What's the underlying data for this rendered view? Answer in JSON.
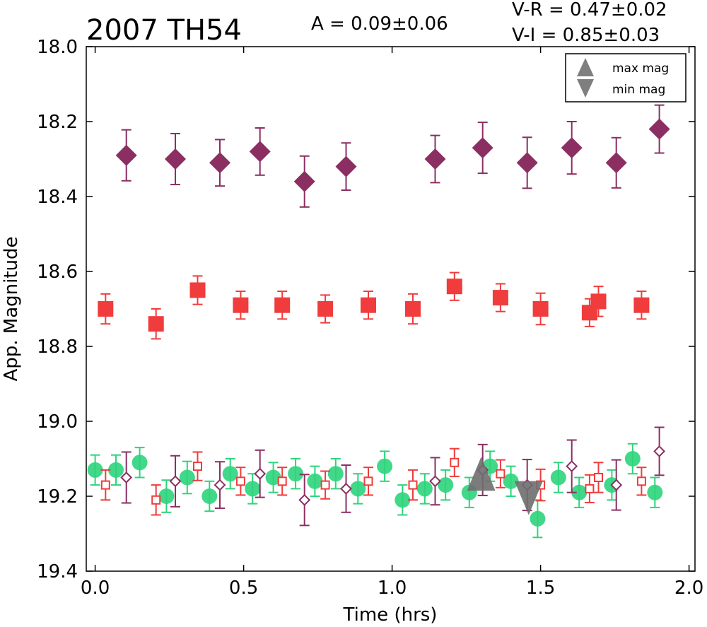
{
  "chart_data": {
    "type": "scatter",
    "title": "2007 TH54",
    "annotations": {
      "amplitude": "A  = 0.09±0.06",
      "v_r": "V-R = 0.47±0.02",
      "v_i": "V-I  = 0.85±0.03"
    },
    "xlabel": "Time (hrs)",
    "ylabel": "App. Magnitude",
    "xlim": [
      -0.03,
      2.02
    ],
    "ylim": [
      19.4,
      18.0
    ],
    "y_inverted": true,
    "xticks": [
      "0.0",
      "0.5",
      "1.0",
      "1.5",
      "2.0"
    ],
    "xtick_values": [
      0.0,
      0.5,
      1.0,
      1.5,
      2.0
    ],
    "yticks": [
      "18.0",
      "18.2",
      "18.4",
      "18.6",
      "18.8",
      "19.0",
      "19.2",
      "19.4"
    ],
    "ytick_values": [
      18.0,
      18.2,
      18.4,
      18.6,
      18.8,
      19.0,
      19.2,
      19.4
    ],
    "grid": false,
    "legend_position": "top-right",
    "legend": [
      {
        "label": "max mag",
        "marker": "triangle-up",
        "color": "#7f7f7f"
      },
      {
        "label": "min mag",
        "marker": "triangle-down",
        "color": "#7f7f7f"
      }
    ],
    "colors": {
      "I": "#8b2f62",
      "R": "#f03c3c",
      "V": "#2ed47c",
      "extrema": "#6e6e6e"
    },
    "series": [
      {
        "band": "I",
        "marker": "diamond-filled",
        "color": "#8b2f62",
        "x": [
          0.105,
          0.27,
          0.42,
          0.555,
          0.705,
          0.845,
          1.145,
          1.305,
          1.455,
          1.605,
          1.755,
          1.9
        ],
        "y": [
          18.29,
          18.3,
          18.31,
          18.28,
          18.36,
          18.32,
          18.3,
          18.27,
          18.31,
          18.27,
          18.31,
          18.22
        ],
        "err": [
          0.068,
          0.068,
          0.062,
          0.063,
          0.068,
          0.063,
          0.063,
          0.068,
          0.068,
          0.07,
          0.067,
          0.064
        ]
      },
      {
        "band": "R",
        "marker": "square-filled",
        "color": "#f03c3c",
        "x": [
          0.035,
          0.205,
          0.345,
          0.49,
          0.63,
          0.775,
          0.92,
          1.07,
          1.21,
          1.365,
          1.5,
          1.665,
          1.695,
          1.84
        ],
        "y": [
          18.7,
          18.74,
          18.65,
          18.69,
          18.69,
          18.7,
          18.69,
          18.7,
          18.64,
          18.67,
          18.7,
          18.71,
          18.68,
          18.69
        ],
        "err": [
          0.04,
          0.04,
          0.038,
          0.037,
          0.037,
          0.037,
          0.037,
          0.04,
          0.037,
          0.037,
          0.042,
          0.037,
          0.04,
          0.037
        ]
      },
      {
        "band": "V",
        "marker": "circle-filled",
        "color": "#2ed47c",
        "x": [
          0.0,
          0.07,
          0.15,
          0.24,
          0.31,
          0.385,
          0.455,
          0.53,
          0.6,
          0.675,
          0.74,
          0.81,
          0.885,
          0.975,
          1.035,
          1.11,
          1.18,
          1.26,
          1.33,
          1.4,
          1.49,
          1.56,
          1.63,
          1.74,
          1.81,
          1.885
        ],
        "y": [
          19.13,
          19.13,
          19.11,
          19.2,
          19.15,
          19.2,
          19.14,
          19.18,
          19.15,
          19.14,
          19.16,
          19.14,
          19.18,
          19.12,
          19.21,
          19.18,
          19.17,
          19.19,
          19.12,
          19.16,
          19.26,
          19.15,
          19.19,
          19.17,
          19.1,
          19.19
        ],
        "err": [
          0.04,
          0.04,
          0.04,
          0.043,
          0.043,
          0.04,
          0.04,
          0.04,
          0.04,
          0.04,
          0.04,
          0.04,
          0.04,
          0.04,
          0.04,
          0.04,
          0.04,
          0.04,
          0.04,
          0.04,
          0.05,
          0.04,
          0.04,
          0.04,
          0.04,
          0.04
        ]
      },
      {
        "band": "R (scaled)",
        "marker": "square-open",
        "color": "#f03c3c",
        "x": [
          0.035,
          0.205,
          0.345,
          0.49,
          0.63,
          0.775,
          0.92,
          1.07,
          1.21,
          1.365,
          1.5,
          1.665,
          1.695,
          1.84
        ],
        "y": [
          19.17,
          19.21,
          19.12,
          19.16,
          19.16,
          19.17,
          19.16,
          19.17,
          19.11,
          19.14,
          19.17,
          19.18,
          19.15,
          19.16
        ],
        "err": [
          0.04,
          0.04,
          0.038,
          0.037,
          0.037,
          0.037,
          0.037,
          0.04,
          0.037,
          0.037,
          0.042,
          0.037,
          0.04,
          0.037
        ]
      },
      {
        "band": "I (scaled)",
        "marker": "diamond-open",
        "color": "#8b2f62",
        "x": [
          0.105,
          0.27,
          0.42,
          0.555,
          0.705,
          0.845,
          1.145,
          1.305,
          1.455,
          1.605,
          1.755,
          1.9
        ],
        "y": [
          19.15,
          19.16,
          19.17,
          19.14,
          19.21,
          19.18,
          19.16,
          19.13,
          19.17,
          19.12,
          19.17,
          19.08
        ],
        "err": [
          0.068,
          0.068,
          0.062,
          0.063,
          0.068,
          0.063,
          0.063,
          0.068,
          0.068,
          0.07,
          0.067,
          0.064
        ]
      }
    ],
    "extrema": [
      {
        "label": "max mag",
        "marker": "triangle-up",
        "x": 1.3,
        "y": 19.14
      },
      {
        "label": "min mag",
        "marker": "triangle-down",
        "x": 1.46,
        "y": 19.205
      }
    ]
  }
}
